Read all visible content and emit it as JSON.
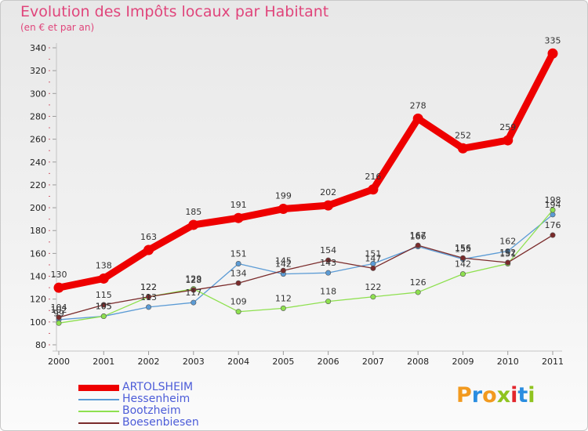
{
  "header": {
    "title": "Evolution des Impôts locaux par Habitant",
    "subtitle": "(en € et par an)"
  },
  "logo": {
    "text": "Proxiti",
    "colors": [
      "#f29a1f",
      "#2a8de0",
      "#f29a1f",
      "#8fc31f",
      "#e2262d",
      "#2a8de0",
      "#8fc31f"
    ]
  },
  "chart_data": {
    "type": "line",
    "title": "Evolution des Impôts locaux par Habitant",
    "subtitle": "(en € et par an)",
    "xlabel": "",
    "ylabel": "",
    "x": [
      "2000",
      "2001",
      "2002",
      "2003",
      "2004",
      "2005",
      "2006",
      "2007",
      "2008",
      "2009",
      "2010",
      "2011"
    ],
    "ylim": [
      80,
      340
    ],
    "yticks": [
      80,
      100,
      120,
      140,
      160,
      180,
      200,
      220,
      240,
      260,
      280,
      300,
      320,
      340
    ],
    "legend": "bottom-left",
    "series": [
      {
        "name": "Hessenheim",
        "color": "#5b9bd5",
        "values": [
          102,
          105,
          113,
          117,
          151,
          142,
          143,
          151,
          166,
          155,
          162,
          194
        ],
        "labels": [
          "102",
          "105",
          "113",
          "117",
          "151",
          "142",
          "143",
          "151",
          "166",
          "155",
          "162",
          "194"
        ]
      },
      {
        "name": "Bootzheim",
        "color": "#8ee04f",
        "values": [
          99,
          105,
          122,
          129,
          109,
          112,
          118,
          122,
          126,
          142,
          151,
          198
        ],
        "labels": [
          "99",
          "105",
          "122",
          "129",
          "109",
          "112",
          "118",
          "122",
          "126",
          "142",
          "151",
          "198"
        ]
      },
      {
        "name": "Boesenbiesen",
        "color": "#7a2b2b",
        "values": [
          104,
          115,
          122,
          128,
          134,
          145,
          154,
          147,
          167,
          156,
          152,
          176
        ],
        "labels": [
          "104",
          "115",
          "122",
          "128",
          "134",
          "145",
          "154",
          "147",
          "167",
          "156",
          "152",
          "176"
        ]
      },
      {
        "name": "ARTOLSHEIM",
        "color": "#ee0000",
        "values": [
          130,
          138,
          163,
          185,
          191,
          199,
          202,
          216,
          278,
          252,
          259,
          335
        ],
        "labels": [
          "130",
          "138",
          "163",
          "185",
          "191",
          "199",
          "202",
          "216",
          "278",
          "252",
          "259",
          "335"
        ]
      }
    ]
  },
  "legend": {
    "items": [
      {
        "label": "ARTOLSHEIM",
        "color": "#ee0000"
      },
      {
        "label": "Hessenheim",
        "color": "#5b9bd5"
      },
      {
        "label": "Bootzheim",
        "color": "#8ee04f"
      },
      {
        "label": "Boesenbiesen",
        "color": "#7a2b2b"
      }
    ]
  }
}
